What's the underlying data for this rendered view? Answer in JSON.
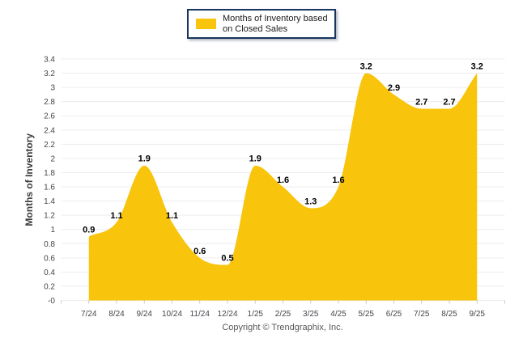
{
  "legend": {
    "label": "Months of Inventory based on Closed Sales",
    "swatch_color": "#F8C40C"
  },
  "footer": {
    "copyright": "Copyright © Trendgraphix, Inc."
  },
  "chart_data": {
    "type": "area",
    "title": "",
    "categories": [
      "7/24",
      "8/24",
      "9/24",
      "10/24",
      "11/24",
      "12/24",
      "1/25",
      "2/25",
      "3/25",
      "4/25",
      "5/25",
      "6/25",
      "7/25",
      "8/25",
      "9/25"
    ],
    "values": [
      0.9,
      1.1,
      1.9,
      1.1,
      0.6,
      0.5,
      1.9,
      1.6,
      1.3,
      1.6,
      3.2,
      2.9,
      2.7,
      2.7,
      3.2
    ],
    "series_name": "Months of Inventory based on Closed Sales",
    "xlabel": "",
    "ylabel": "Months of Inventory",
    "ylim": [
      0,
      3.4
    ],
    "ytick_step": 0.2,
    "grid": true,
    "legend_position": "top",
    "smoothing": "spline",
    "colors": {
      "area_fill": "#F8C40C",
      "gridline": "#EDEDED",
      "baseline": "#D8D8D8",
      "axis_tick": "#C9C9C9",
      "tick_label": "#45454d",
      "data_label": "#000000",
      "axis_title": "#3C3C3C"
    }
  }
}
